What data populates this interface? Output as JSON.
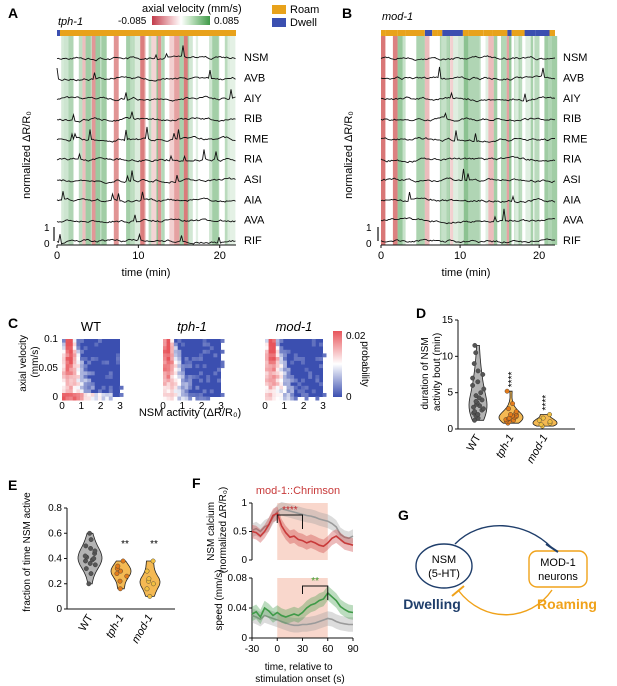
{
  "colors": {
    "roam": "#e8a21b",
    "dwell": "#3b4fb0",
    "green": "#3f9a48",
    "red": "#c83a3a",
    "gray": "#9a9a9a",
    "orange": "#f0a21a",
    "navy": "#1f3e6b",
    "sig_red": "#c0262b",
    "sig_green": "#3a9a2a"
  },
  "panelA": {
    "letter": "A",
    "strain": "tph-1",
    "colorbar_title": "axial velocity (mm/s)",
    "colorbar_min": "-0.085",
    "colorbar_max": "0.085",
    "legend_roam": "Roam",
    "legend_dwell": "Dwell",
    "ylabel": "normalized ΔR/R₀",
    "xlabel": "time (min)",
    "xticks": [
      "0",
      "10",
      "20"
    ],
    "scale_top": "1",
    "scale_bottom": "0",
    "neurons": [
      "NSM",
      "AVB",
      "AIY",
      "RIB",
      "RME",
      "RIA",
      "ASI",
      "AIA",
      "AVA",
      "RIF"
    ]
  },
  "panelB": {
    "letter": "B",
    "strain": "mod-1",
    "ylabel": "normalized ΔR/R₀",
    "xlabel": "time (min)",
    "xticks": [
      "0",
      "10",
      "20"
    ],
    "scale_top": "1",
    "scale_bottom": "0",
    "neurons": [
      "NSM",
      "AVB",
      "AIY",
      "RIB",
      "RME",
      "RIA",
      "ASI",
      "AIA",
      "AVA",
      "RIF"
    ]
  },
  "panelC": {
    "letter": "C",
    "titles": [
      "WT",
      "tph-1",
      "mod-1"
    ],
    "ylabel": "axial velocity\n(mm/s)",
    "xlabel": "NSM activity (ΔR/R₀)",
    "yticks": [
      "0",
      "0.05",
      "0.1"
    ],
    "xticks": [
      "0",
      "1",
      "2",
      "3"
    ],
    "colorbar_label": "probability",
    "colorbar_top": "0.02",
    "colorbar_bottom": "0"
  },
  "panelD": {
    "letter": "D",
    "ylabel": "duration of NSM\nactivity bout (min)",
    "yticks": [
      "0",
      "5",
      "10",
      "15"
    ],
    "groups": [
      "WT",
      "tph-1",
      "mod-1"
    ],
    "sig": [
      "",
      "****",
      "****"
    ]
  },
  "panelE": {
    "letter": "E",
    "ylabel": "fraction of time NSM active",
    "yticks": [
      "0",
      "0.2",
      "0.4",
      "0.6",
      "0.8"
    ],
    "groups": [
      "WT",
      "tph-1",
      "mod-1"
    ],
    "sig": [
      "",
      "**",
      "**"
    ]
  },
  "panelF": {
    "letter": "F",
    "title": "mod-1::Chrimson",
    "top_ylabel": "NSM calcium\n(normalized ΔR/R₀)",
    "top_yticks": [
      "0",
      "0.5",
      "1"
    ],
    "top_sig": "****",
    "bottom_ylabel": "speed (mm/s)",
    "bottom_yticks": [
      "0",
      "0.04",
      "0.08"
    ],
    "bottom_sig": "**",
    "xticks": [
      "-30",
      "0",
      "30",
      "60",
      "90"
    ],
    "xlabel": "time, relative to\nstimulation onset (s)"
  },
  "panelG": {
    "letter": "G",
    "nsm_label": "NSM\n(5-HT)",
    "mod1_label": "MOD-1\nneurons",
    "dwelling": "Dwelling",
    "roaming": "Roaming"
  },
  "chart_data": [
    {
      "type": "line",
      "panel": "F-top",
      "x": [
        -30,
        -25,
        -20,
        -15,
        -10,
        -5,
        0,
        5,
        10,
        15,
        20,
        25,
        30,
        35,
        40,
        45,
        50,
        55,
        60,
        65,
        70,
        75,
        80,
        85,
        90
      ],
      "series": [
        {
          "values": [
            0.52,
            0.55,
            0.5,
            0.58,
            0.62,
            0.75,
            0.85,
            0.9,
            0.88,
            0.86,
            0.84,
            0.82,
            0.8,
            0.78,
            0.77,
            0.75,
            0.72,
            0.7,
            0.68,
            0.64,
            0.58,
            0.45,
            0.4,
            0.38,
            0.42
          ]
        },
        {
          "values": [
            0.5,
            0.48,
            0.42,
            0.5,
            0.62,
            0.78,
            0.82,
            0.6,
            0.48,
            0.4,
            0.42,
            0.36,
            0.34,
            0.3,
            0.33,
            0.3,
            0.26,
            0.24,
            0.3,
            0.38,
            0.42,
            0.36,
            0.3,
            0.28,
            0.26
          ]
        }
      ],
      "ylim": [
        0,
        1
      ],
      "stim_window": [
        0,
        60
      ],
      "bracket": [
        0,
        30
      ]
    },
    {
      "type": "line",
      "panel": "F-bottom",
      "x": [
        -30,
        -25,
        -20,
        -15,
        -10,
        -5,
        0,
        5,
        10,
        15,
        20,
        25,
        30,
        35,
        40,
        45,
        50,
        55,
        60,
        65,
        70,
        75,
        80,
        85,
        90
      ],
      "series": [
        {
          "values": [
            0.03,
            0.028,
            0.025,
            0.03,
            0.028,
            0.026,
            0.024,
            0.022,
            0.02,
            0.018,
            0.017,
            0.017,
            0.018,
            0.018,
            0.019,
            0.02,
            0.022,
            0.024,
            0.026,
            0.025,
            0.022,
            0.02,
            0.019,
            0.018,
            0.018
          ]
        },
        {
          "values": [
            0.032,
            0.035,
            0.028,
            0.04,
            0.036,
            0.03,
            0.034,
            0.03,
            0.028,
            0.03,
            0.032,
            0.03,
            0.034,
            0.04,
            0.044,
            0.046,
            0.05,
            0.052,
            0.06,
            0.055,
            0.05,
            0.042,
            0.038,
            0.035,
            0.034
          ]
        }
      ],
      "ylim": [
        0,
        0.08
      ],
      "stim_window": [
        0,
        60
      ],
      "bracket": [
        30,
        60
      ]
    },
    {
      "type": "scatter",
      "panel": "D",
      "groups": [
        "WT",
        "tph-1",
        "mod-1"
      ],
      "values": [
        [
          1.2,
          1.5,
          1.8,
          2.0,
          2.2,
          2.4,
          2.6,
          2.8,
          3.0,
          3.2,
          3.4,
          3.6,
          3.8,
          4.0,
          4.3,
          4.6,
          5.0,
          5.5,
          6.0,
          6.5,
          7.0,
          7.5,
          8.0,
          9.0,
          10.5,
          11.5
        ],
        [
          0.8,
          1.0,
          1.1,
          1.2,
          1.3,
          1.4,
          1.5,
          1.6,
          1.7,
          1.8,
          1.9,
          2.0,
          2.2,
          2.4,
          2.8,
          3.5,
          5.2
        ],
        [
          0.4,
          0.6,
          0.8,
          1.0,
          1.2,
          1.5,
          2.0
        ]
      ],
      "ylim": [
        0,
        15
      ]
    },
    {
      "type": "scatter",
      "panel": "E",
      "groups": [
        "WT",
        "tph-1",
        "mod-1"
      ],
      "values": [
        [
          0.2,
          0.28,
          0.32,
          0.35,
          0.36,
          0.38,
          0.39,
          0.4,
          0.41,
          0.42,
          0.44,
          0.46,
          0.48,
          0.5,
          0.55,
          0.6
        ],
        [
          0.16,
          0.22,
          0.26,
          0.28,
          0.3,
          0.32,
          0.34,
          0.38
        ],
        [
          0.1,
          0.16,
          0.2,
          0.22,
          0.24,
          0.3,
          0.38
        ]
      ],
      "ylim": [
        0,
        0.8
      ]
    }
  ]
}
